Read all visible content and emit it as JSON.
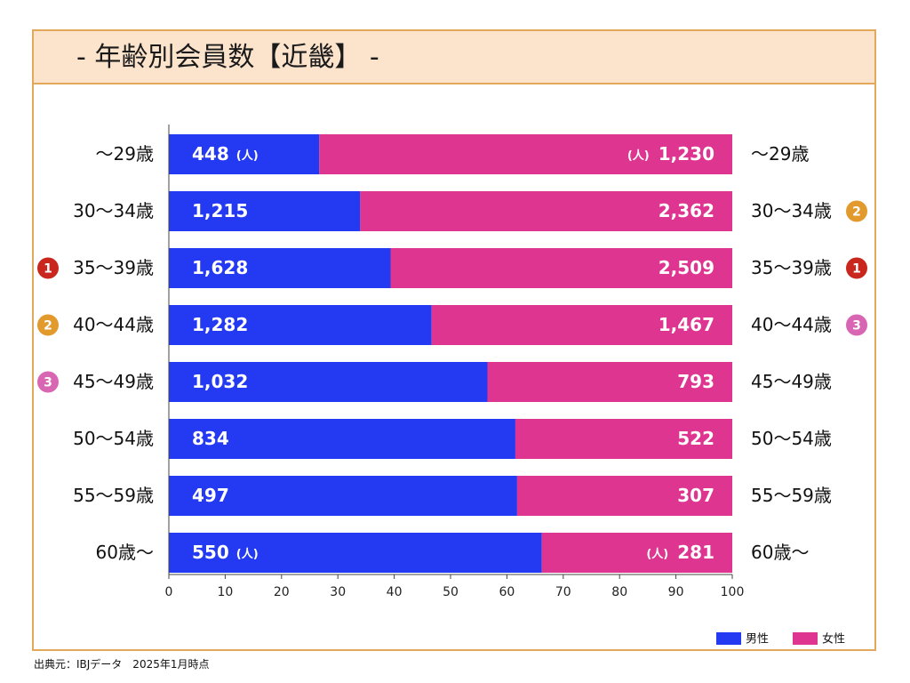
{
  "title": "- 年齢別会員数【近畿】 -",
  "source_note": "出典元：IBJデータ　2025年1月時点",
  "colors": {
    "male": "#2439f2",
    "female": "#de3590",
    "rank1": "#c9261d",
    "rank2": "#e39a2d",
    "rank3": "#d966b3",
    "frame": "#e2a95c",
    "header_bg": "#fbe3cc"
  },
  "chart_data": {
    "type": "bar",
    "orientation": "horizontal",
    "stacked": "percent",
    "title": "- 年齢別会員数【近畿】 -",
    "categories": [
      "～29歳",
      "30～34歳",
      "35～39歳",
      "40～44歳",
      "45～49歳",
      "50～54歳",
      "55～59歳",
      "60歳～"
    ],
    "series": [
      {
        "name": "男性",
        "values": [
          448,
          1215,
          1628,
          1282,
          1032,
          834,
          497,
          550
        ],
        "labels": [
          "448",
          "1,215",
          "1,628",
          "1,282",
          "1,032",
          "834",
          "497",
          "550"
        ]
      },
      {
        "name": "女性",
        "values": [
          1230,
          2362,
          2509,
          1467,
          793,
          522,
          307,
          281
        ],
        "labels": [
          "1,230",
          "2,362",
          "2,509",
          "1,467",
          "793",
          "522",
          "307",
          "281"
        ]
      }
    ],
    "unit_label": "(人)",
    "xlim": [
      0,
      100
    ],
    "xticks": [
      "0",
      "10",
      "20",
      "30",
      "40",
      "50",
      "60",
      "70",
      "80",
      "90",
      "100"
    ],
    "legend": {
      "position": "bottom-right",
      "entries": [
        "男性",
        "女性"
      ]
    },
    "ranks": {
      "male": [
        {
          "category": "35～39歳",
          "rank": "1"
        },
        {
          "category": "40～44歳",
          "rank": "2"
        },
        {
          "category": "45～49歳",
          "rank": "3"
        }
      ],
      "female": [
        {
          "category": "35～39歳",
          "rank": "1"
        },
        {
          "category": "30～34歳",
          "rank": "2"
        },
        {
          "category": "40～44歳",
          "rank": "3"
        }
      ]
    }
  }
}
